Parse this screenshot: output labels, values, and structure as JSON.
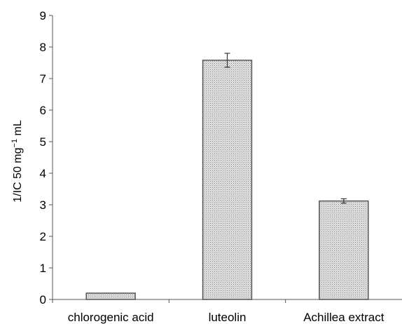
{
  "chart_data": {
    "type": "bar",
    "title": "",
    "xlabel": "",
    "ylabel_parts": {
      "prefix": "1/IC 50  mg",
      "sup": "−1",
      "suffix": " mL"
    },
    "categories": [
      "chlorogenic acid",
      "luteolin",
      "Achillea extract"
    ],
    "values": [
      0.2,
      7.58,
      3.12
    ],
    "errors": [
      0,
      0.22,
      0.07
    ],
    "ylim": [
      0,
      9
    ],
    "yticks": [
      "0",
      "1",
      "2",
      "3",
      "4",
      "5",
      "6",
      "7",
      "8",
      "9"
    ],
    "grid": false,
    "legend": "none",
    "bar_fill": "#d4d4d4",
    "bar_stroke": "#555555"
  }
}
